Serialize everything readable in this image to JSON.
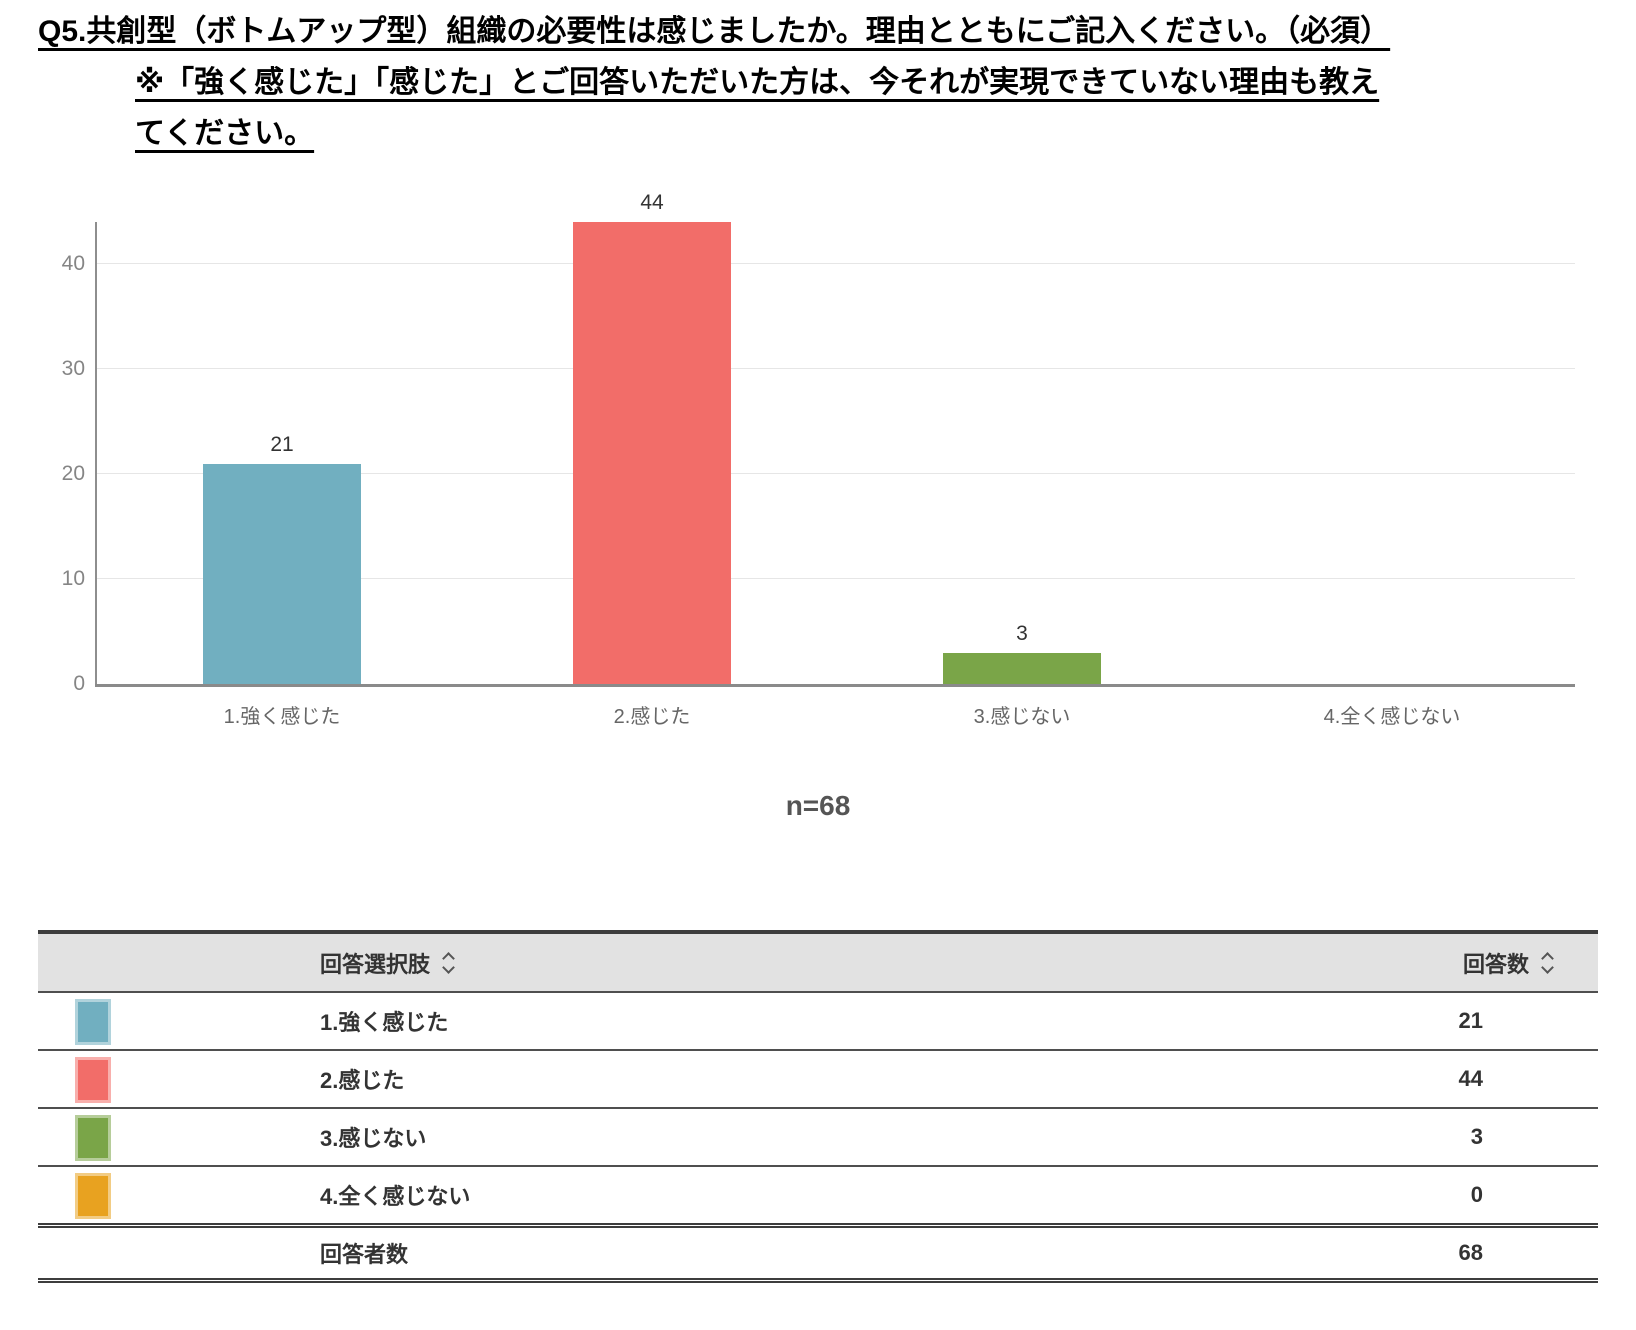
{
  "title": {
    "line1": "Q5.共創型（ボトムアップ型）組織の必要性は感じましたか。理由とともにご記入ください。（必須）",
    "line2": "※「強く感じた」「感じた」とご回答いただいた方は、今それが実現できていない理由も教え",
    "line3": "てください。"
  },
  "chart_data": {
    "type": "bar",
    "categories": [
      "1.強く感じた",
      "2.感じた",
      "3.感じない",
      "4.全く感じない"
    ],
    "values": [
      21,
      44,
      3,
      0
    ],
    "bar_colors": [
      "#71AFC0",
      "#F26D69",
      "#7AA548",
      "#E8A220"
    ],
    "title": "",
    "xlabel": "",
    "ylabel": "",
    "ylim": [
      0,
      44
    ],
    "yticks": [
      0,
      10,
      20,
      30,
      40
    ],
    "grid": true,
    "legend_position": "none",
    "sample_size_label": "n=68"
  },
  "table": {
    "header": {
      "choice_label": "回答選択肢",
      "count_label": "回答数"
    },
    "rows": [
      {
        "label": "1.強く感じた",
        "value": "21",
        "color": "#71AFC0"
      },
      {
        "label": "2.感じた",
        "value": "44",
        "color": "#F26D69"
      },
      {
        "label": "3.感じない",
        "value": "3",
        "color": "#7AA548"
      },
      {
        "label": "4.全く感じない",
        "value": "0",
        "color": "#E8A220"
      }
    ],
    "total": {
      "label": "回答者数",
      "value": "68"
    }
  },
  "icons": {
    "sort": "sort-up-down-chevrons"
  },
  "colors": {
    "grid": "#e6e6e6",
    "axis": "#8a8a8a",
    "header_bg": "#e2e2e2",
    "border": "#3d3d3d",
    "text": "#333333"
  }
}
